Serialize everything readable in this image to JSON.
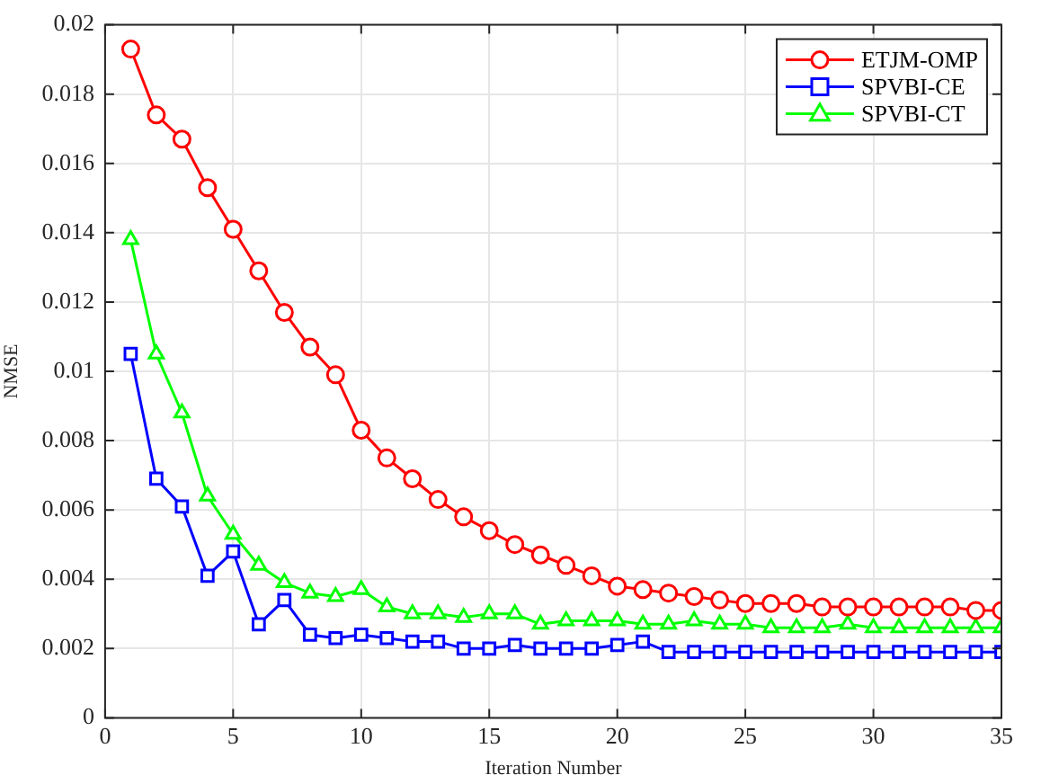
{
  "chart_data": {
    "type": "line",
    "xlabel": "Iteration Number",
    "ylabel": "NMSE",
    "x": [
      1,
      2,
      3,
      4,
      5,
      6,
      7,
      8,
      9,
      10,
      11,
      12,
      13,
      14,
      15,
      16,
      17,
      18,
      19,
      20,
      21,
      22,
      23,
      24,
      25,
      26,
      27,
      28,
      29,
      30,
      31,
      32,
      33,
      34,
      35
    ],
    "series": [
      {
        "name": "ETJM-OMP",
        "color": "#ff0000",
        "marker": "circle",
        "values": [
          0.0193,
          0.0174,
          0.0167,
          0.0153,
          0.0141,
          0.0129,
          0.0117,
          0.0107,
          0.0099,
          0.0083,
          0.0075,
          0.0069,
          0.0063,
          0.0058,
          0.0054,
          0.005,
          0.0047,
          0.0044,
          0.0041,
          0.0038,
          0.0037,
          0.0036,
          0.0035,
          0.0034,
          0.0033,
          0.0033,
          0.0033,
          0.0032,
          0.0032,
          0.0032,
          0.0032,
          0.0032,
          0.0032,
          0.0031,
          0.0031
        ]
      },
      {
        "name": "SPVBI-CE",
        "color": "#0000ff",
        "marker": "square",
        "values": [
          0.0105,
          0.0069,
          0.0061,
          0.0041,
          0.0048,
          0.0027,
          0.0034,
          0.0024,
          0.0023,
          0.0024,
          0.0023,
          0.0022,
          0.0022,
          0.002,
          0.002,
          0.0021,
          0.002,
          0.002,
          0.002,
          0.0021,
          0.0022,
          0.0019,
          0.0019,
          0.0019,
          0.0019,
          0.0019,
          0.0019,
          0.0019,
          0.0019,
          0.0019,
          0.0019,
          0.0019,
          0.0019,
          0.0019,
          0.0019
        ]
      },
      {
        "name": "SPVBI-CT",
        "color": "#00ff00",
        "marker": "triangle",
        "values": [
          0.0138,
          0.0105,
          0.0088,
          0.0064,
          0.0053,
          0.0044,
          0.0039,
          0.0036,
          0.0035,
          0.0037,
          0.0032,
          0.003,
          0.003,
          0.0029,
          0.003,
          0.003,
          0.0027,
          0.0028,
          0.0028,
          0.0028,
          0.0027,
          0.0027,
          0.0028,
          0.0027,
          0.0027,
          0.0026,
          0.0026,
          0.0026,
          0.0027,
          0.0026,
          0.0026,
          0.0026,
          0.0026,
          0.0026,
          0.0026
        ]
      }
    ],
    "xlim": [
      0,
      35
    ],
    "xticks": [
      0,
      5,
      10,
      15,
      20,
      25,
      30,
      35
    ],
    "ylim": [
      0,
      0.02
    ],
    "yticks": [
      0,
      0.002,
      0.004,
      0.006,
      0.008,
      0.01,
      0.012,
      0.014,
      0.016,
      0.018,
      0.02
    ],
    "grid": true,
    "legend": "top right",
    "line_style": "solid"
  }
}
